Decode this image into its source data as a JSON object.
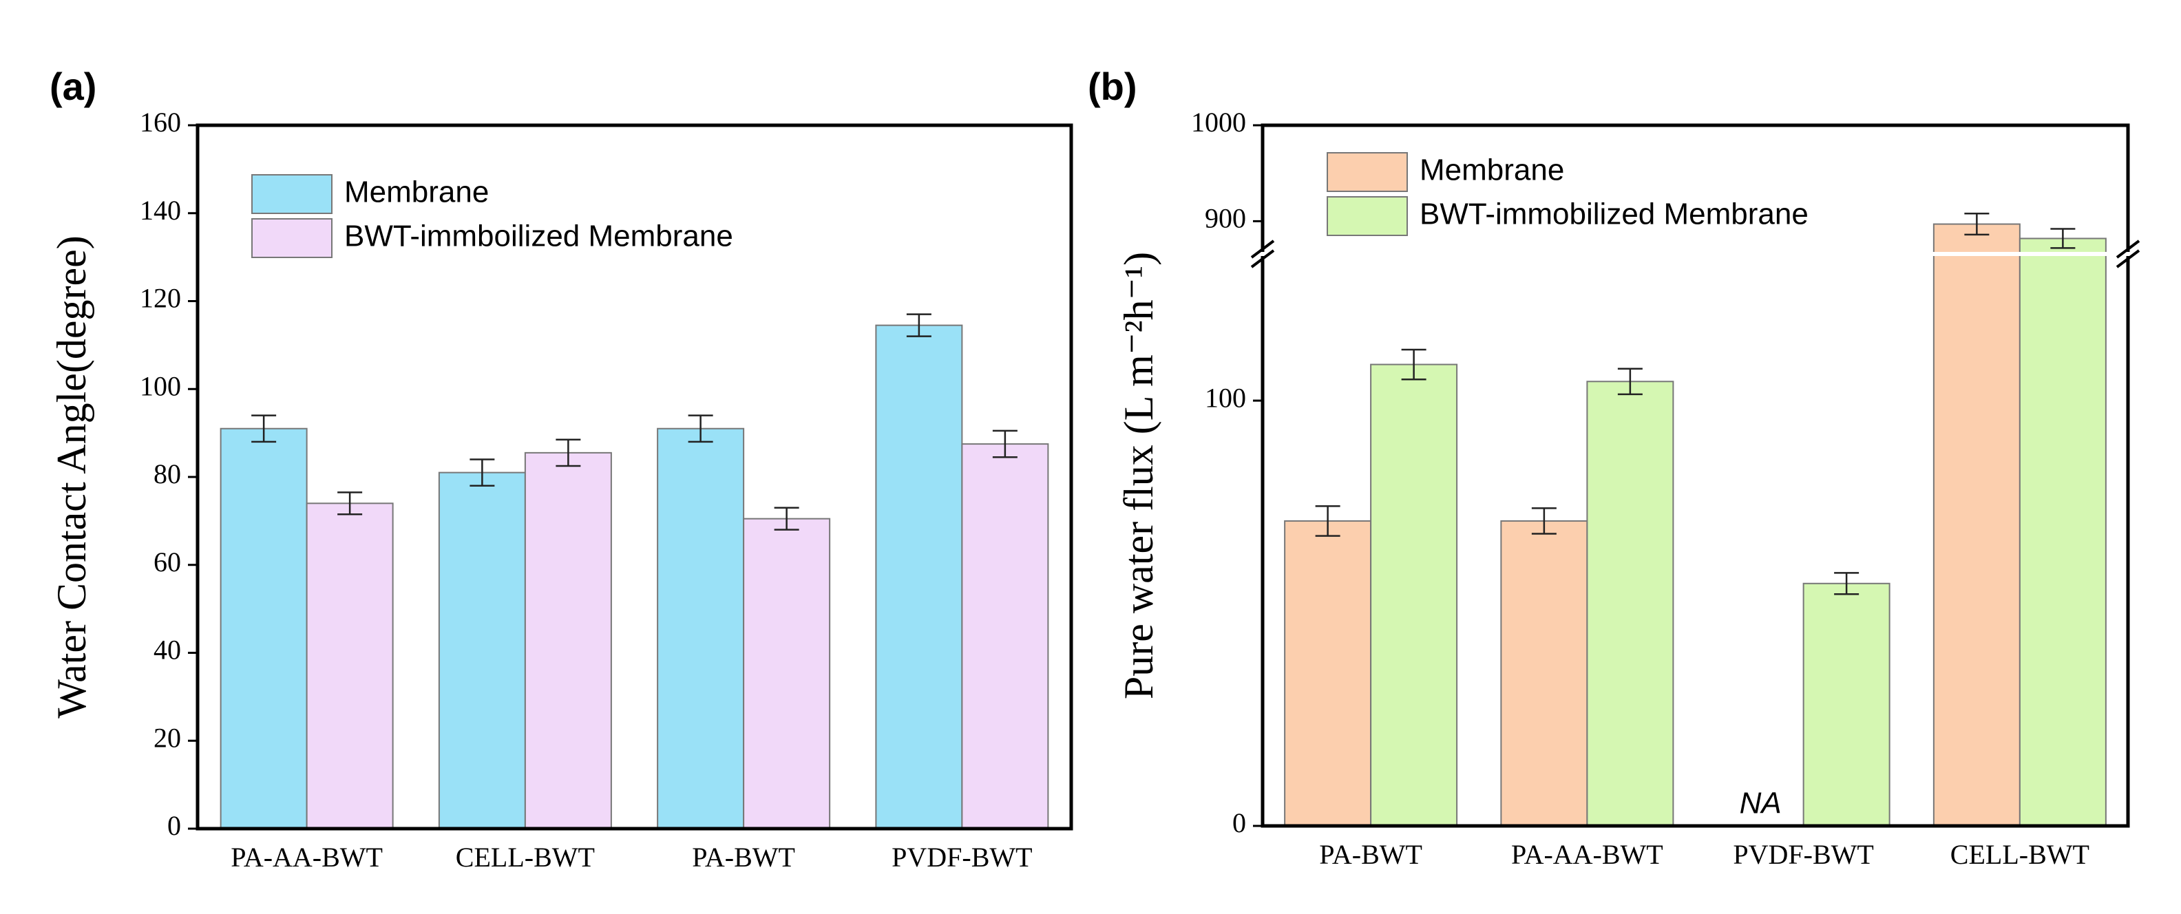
{
  "chart_data": [
    {
      "type": "bar",
      "label": "(a)",
      "y_label": "Water Contact Angle(degree)",
      "categories": [
        "PA-AA-BWT",
        "CELL-BWT",
        "PA-BWT",
        "PVDF-BWT"
      ],
      "series": [
        {
          "name": "Membrane",
          "color": "#9ae1f7",
          "values": [
            91,
            81,
            91,
            114.5
          ],
          "errors": [
            3,
            3,
            3,
            2.5
          ]
        },
        {
          "name": "BWT-immboilized Membrane",
          "color": "#f1d9f9",
          "values": [
            74,
            85.5,
            70.5,
            87.5
          ],
          "errors": [
            2.5,
            3,
            2.5,
            3
          ]
        }
      ],
      "ylim": [
        0,
        160
      ],
      "yticks": [
        0,
        20,
        40,
        60,
        80,
        100,
        120,
        140,
        160
      ],
      "legend": "upper left"
    },
    {
      "type": "bar",
      "label": "(b)",
      "y_label": "Pure water flux (L m⁻²h⁻¹)",
      "categories": [
        "PA-BWT",
        "PA-AA-BWT",
        "PVDF-BWT",
        "CELL-BWT"
      ],
      "series": [
        {
          "name": "Membrane",
          "color": "#fccfae",
          "values": [
            71.7,
            71.7,
            null,
            897
          ],
          "errors": [
            3.5,
            3,
            null,
            11
          ]
        },
        {
          "name": "BWT-immobilized Membrane",
          "color": "#d5f7b2",
          "values": [
            108.5,
            104.5,
            57,
            882
          ],
          "errors": [
            3.5,
            3,
            2.5,
            10
          ]
        }
      ],
      "ylim": [
        0,
        1000
      ],
      "yticks": [
        0,
        100,
        900,
        1000
      ],
      "axis_break": [
        134,
        868
      ],
      "legend": "upper left",
      "annotations": [
        {
          "text": "NA"
        }
      ]
    }
  ]
}
